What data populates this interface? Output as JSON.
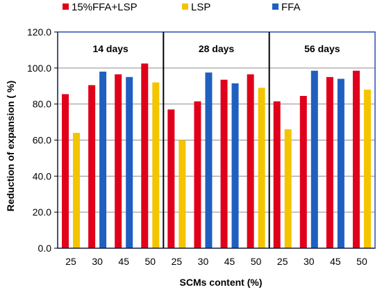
{
  "chart_data": {
    "type": "bar",
    "xlabel": "SCMs content (%)",
    "ylabel": "Reduction  of expansion  ( %)",
    "ylim": [
      0,
      120
    ],
    "yticks": [
      "0.0",
      "20.0",
      "40.0",
      "60.0",
      "80.0",
      "100.0",
      "120.0"
    ],
    "grid": true,
    "legend_position": "top",
    "colors": {
      "15%FFA+LSP": "#e0001b",
      "LSP": "#f5c400",
      "FFA": "#1f5fc0"
    },
    "panels": [
      {
        "label": "14 days",
        "groups": [
          {
            "category": "25",
            "bars": [
              {
                "series": "15%FFA+LSP",
                "value": 85.5
              },
              {
                "series": "LSP",
                "value": 64.0
              }
            ]
          },
          {
            "category": "30",
            "bars": [
              {
                "series": "15%FFA+LSP",
                "value": 90.5
              },
              {
                "series": "FFA",
                "value": 98.0
              }
            ]
          },
          {
            "category": "45",
            "bars": [
              {
                "series": "15%FFA+LSP",
                "value": 96.5
              },
              {
                "series": "FFA",
                "value": 95.0
              }
            ]
          },
          {
            "category": "50",
            "bars": [
              {
                "series": "15%FFA+LSP",
                "value": 102.5
              },
              {
                "series": "LSP",
                "value": 92.0
              }
            ]
          }
        ]
      },
      {
        "label": "28 days",
        "groups": [
          {
            "category": "25",
            "bars": [
              {
                "series": "15%FFA+LSP",
                "value": 77.0
              },
              {
                "series": "LSP",
                "value": 60.0
              }
            ]
          },
          {
            "category": "30",
            "bars": [
              {
                "series": "15%FFA+LSP",
                "value": 81.5
              },
              {
                "series": "FFA",
                "value": 97.5
              }
            ]
          },
          {
            "category": "45",
            "bars": [
              {
                "series": "15%FFA+LSP",
                "value": 93.5
              },
              {
                "series": "FFA",
                "value": 91.5
              }
            ]
          },
          {
            "category": "50",
            "bars": [
              {
                "series": "15%FFA+LSP",
                "value": 96.5
              },
              {
                "series": "LSP",
                "value": 89.0
              }
            ]
          }
        ]
      },
      {
        "label": "56 days",
        "groups": [
          {
            "category": "25",
            "bars": [
              {
                "series": "15%FFA+LSP",
                "value": 81.5
              },
              {
                "series": "LSP",
                "value": 66.0
              }
            ]
          },
          {
            "category": "30",
            "bars": [
              {
                "series": "15%FFA+LSP",
                "value": 84.5
              },
              {
                "series": "FFA",
                "value": 98.5
              }
            ]
          },
          {
            "category": "45",
            "bars": [
              {
                "series": "15%FFA+LSP",
                "value": 95.0
              },
              {
                "series": "FFA",
                "value": 94.0
              }
            ]
          },
          {
            "category": "50",
            "bars": [
              {
                "series": "15%FFA+LSP",
                "value": 98.5
              },
              {
                "series": "LSP",
                "value": 88.0
              }
            ]
          }
        ]
      }
    ],
    "legend": [
      "15%FFA+LSP",
      "LSP",
      "FFA"
    ]
  }
}
